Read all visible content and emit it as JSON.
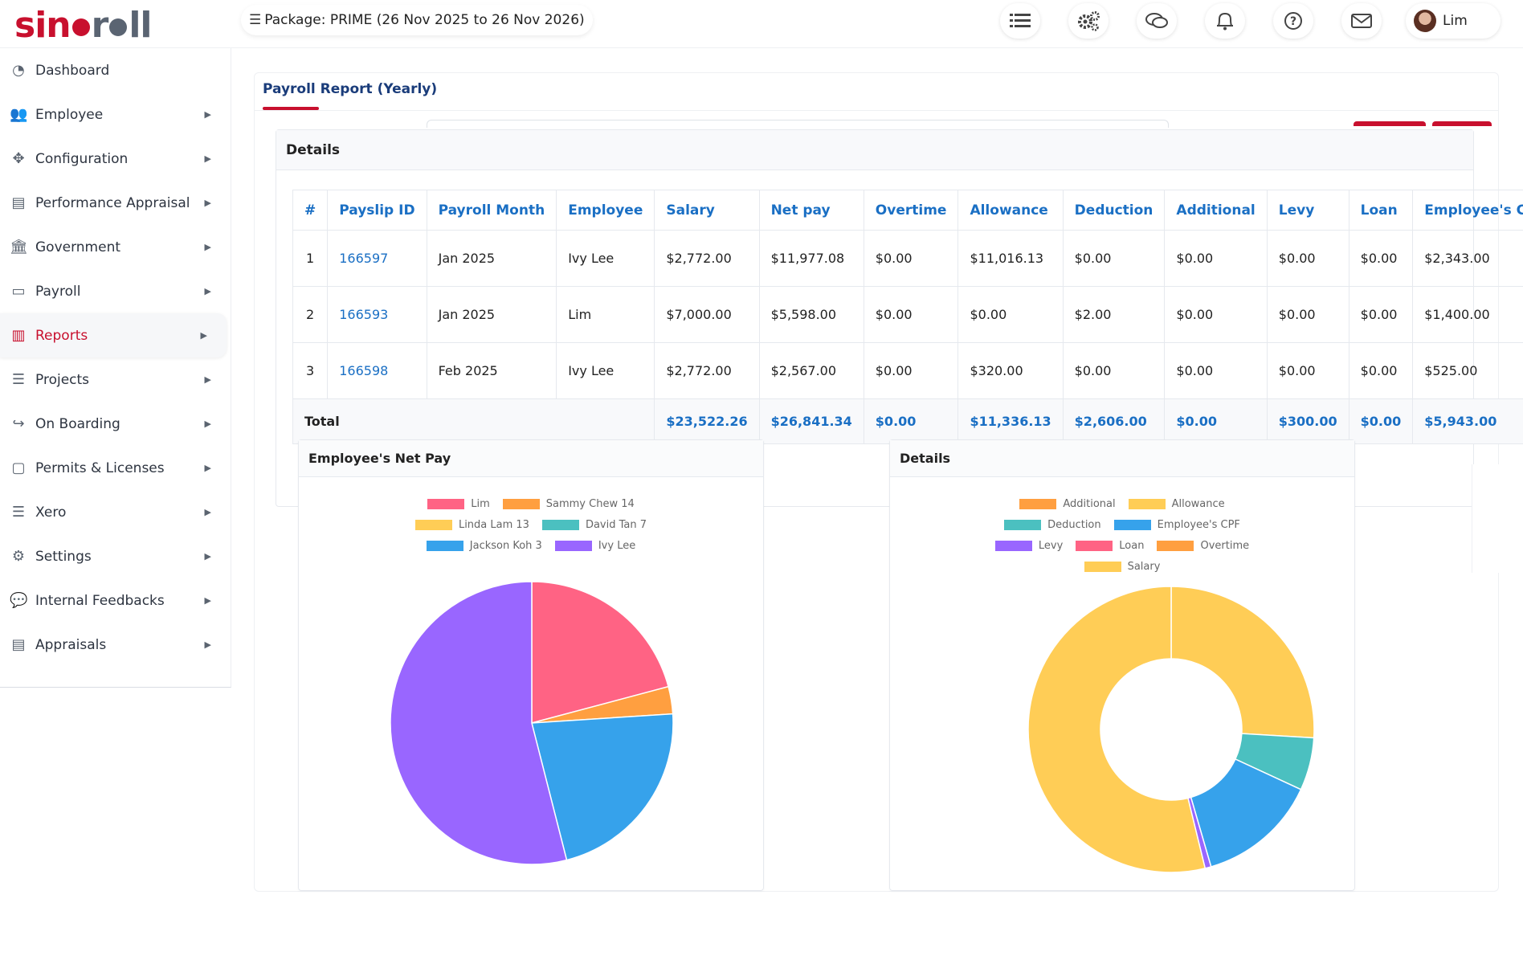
{
  "brand": {
    "logo_left": "sin",
    "logo_mid": "r",
    "logo_right": "ll"
  },
  "package": {
    "label": "Package: PRIME (26 Nov 2025 to 26 Nov 2026)"
  },
  "header_icons": [
    "list-icon",
    "gear-icon",
    "chat-icon",
    "bell-icon",
    "help-icon",
    "mail-icon"
  ],
  "user": {
    "name": "Lim"
  },
  "sidebar": {
    "items": [
      {
        "label": "Dashboard",
        "icon": "dashboard-icon",
        "has_caret": false
      },
      {
        "label": "Employee",
        "icon": "users-icon",
        "has_caret": true
      },
      {
        "label": "Configuration",
        "icon": "move-icon",
        "has_caret": true
      },
      {
        "label": "Performance Appraisal",
        "icon": "document-icon",
        "has_caret": true
      },
      {
        "label": "Government",
        "icon": "bank-icon",
        "has_caret": true
      },
      {
        "label": "Payroll",
        "icon": "id-card-icon",
        "has_caret": true
      },
      {
        "label": "Reports",
        "icon": "bar-chart-icon",
        "has_caret": true,
        "active": true
      },
      {
        "label": "Projects",
        "icon": "list-icon",
        "has_caret": true
      },
      {
        "label": "On Boarding",
        "icon": "share-icon",
        "has_caret": true
      },
      {
        "label": "Permits & Licenses",
        "icon": "file-icon",
        "has_caret": true
      },
      {
        "label": "Xero",
        "icon": "database-icon",
        "has_caret": true
      },
      {
        "label": "Settings",
        "icon": "cog-icon",
        "has_caret": true
      },
      {
        "label": "Internal Feedbacks",
        "icon": "comment-icon",
        "has_caret": true
      },
      {
        "label": "Appraisals",
        "icon": "file-text-icon",
        "has_caret": true
      }
    ]
  },
  "report": {
    "tab_label": "Payroll Report (Yearly)",
    "details_title": "Details",
    "columns": [
      "#",
      "Payslip ID",
      "Payroll Month",
      "Employee",
      "Salary",
      "Net pay",
      "Overtime",
      "Allowance",
      "Deduction",
      "Additional",
      "Levy",
      "Loan",
      "Employee's CPF"
    ],
    "rows": [
      [
        "1",
        "166597",
        "Jan 2025",
        "Ivy Lee",
        "$2,772.00",
        "$11,977.08",
        "$0.00",
        "$11,016.13",
        "$0.00",
        "$0.00",
        "$0.00",
        "$0.00",
        "$2,343.00"
      ],
      [
        "2",
        "166593",
        "Jan 2025",
        "Lim",
        "$7,000.00",
        "$5,598.00",
        "$0.00",
        "$0.00",
        "$2.00",
        "$0.00",
        "$0.00",
        "$0.00",
        "$1,400.00"
      ],
      [
        "3",
        "166598",
        "Feb 2025",
        "Ivy Lee",
        "$2,772.00",
        "$2,567.00",
        "$0.00",
        "$320.00",
        "$0.00",
        "$0.00",
        "$0.00",
        "$0.00",
        "$525.00"
      ]
    ],
    "total": {
      "label": "Total",
      "values": [
        "$23,522.26",
        "$26,841.34",
        "$0.00",
        "$11,336.13",
        "$2,606.00",
        "$0.00",
        "$300.00",
        "$0.00",
        "$5,943.00"
      ]
    }
  },
  "chart_data": [
    {
      "type": "pie",
      "title": "Employee's Net Pay",
      "legend_position": "top",
      "categories": [
        "Lim",
        "Sammy Chew 14",
        "Linda Lam 13",
        "David Tan 7",
        "Jackson Koh 3",
        "Ivy Lee"
      ],
      "values": [
        5598.0,
        836.0,
        0,
        0,
        5920.0,
        14487.34
      ],
      "colors": [
        "#ff6384",
        "#ff9f40",
        "#ffcd56",
        "#4bc0c0",
        "#36a2eb",
        "#9966ff"
      ]
    },
    {
      "type": "pie",
      "variant": "doughnut",
      "title": "Details",
      "legend_position": "top",
      "categories": [
        "Additional",
        "Allowance",
        "Deduction",
        "Employee's CPF",
        "Levy",
        "Loan",
        "Overtime",
        "Salary"
      ],
      "values": [
        0.0,
        11336.13,
        2606.0,
        5943.0,
        300.0,
        0.0,
        0.0,
        23522.26
      ],
      "colors": [
        "#ff9f40",
        "#ffcd56",
        "#4bc0c0",
        "#36a2eb",
        "#9966ff",
        "#ff6384",
        "#ff9f40",
        "#ffcd56"
      ]
    }
  ]
}
